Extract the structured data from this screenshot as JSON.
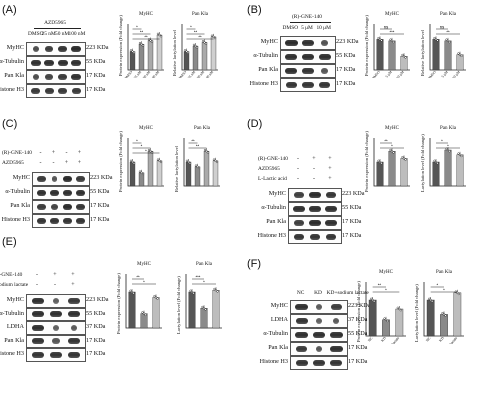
{
  "panels": {
    "A": {
      "label": "(A)",
      "compound": "AZD5965",
      "doses": [
        "DMSO",
        "25 nM",
        "50 nM",
        "100 nM"
      ],
      "rows": [
        {
          "name": "MyHC",
          "kda": "223 KDa"
        },
        {
          "name": "α-Tubulin",
          "kda": "55 KDa"
        },
        {
          "name": "Pan Kla",
          "kda": "17 KDa"
        },
        {
          "name": "Histone H3",
          "kda": "17 KDa"
        }
      ],
      "chart1": {
        "title": "MyHC",
        "ylabel": "Protein expression (Fold change)",
        "xticks": [
          "DMSO",
          "25 nM",
          "50 nM",
          "100 nM"
        ]
      },
      "chart2": {
        "title": "Pan Kla",
        "ylabel": "Relative lactylation level",
        "xticks": [
          "DMSO",
          "25 nM",
          "50 nM",
          "100 nM"
        ]
      }
    },
    "B": {
      "label": "(B)",
      "compound": "(R)-GNE-140",
      "doses": [
        "DMSO",
        "5 μM",
        "10 μM"
      ],
      "rows": [
        {
          "name": "MyHC",
          "kda": "223 KDa"
        },
        {
          "name": "α-Tubulin",
          "kda": "55 KDa"
        },
        {
          "name": "Pan Kla",
          "kda": "17 KDa"
        },
        {
          "name": "Histone H3",
          "kda": "17 KDa"
        }
      ],
      "chart1": {
        "title": "MyHC",
        "ylabel": "Protein expression (Fold change)",
        "xticks": [
          "DMSO",
          "5 μM",
          "10 μM"
        ]
      },
      "chart2": {
        "title": "Pan Kla",
        "ylabel": "Relative lactylation level",
        "xticks": [
          "DMSO",
          "5 μM",
          "10 μM"
        ]
      }
    },
    "C": {
      "label": "(C)",
      "conditions": [
        {
          "name": "(R)-GNE-140",
          "signs": [
            "-",
            "+",
            "-",
            "+"
          ]
        },
        {
          "name": "AZD5965",
          "signs": [
            "-",
            "-",
            "+",
            "+"
          ]
        }
      ],
      "rows": [
        {
          "name": "MyHC",
          "kda": "223 KDa"
        },
        {
          "name": "α-Tubulin",
          "kda": "55 KDa"
        },
        {
          "name": "Pan Kla",
          "kda": "17 KDa"
        },
        {
          "name": "Histone H3",
          "kda": "17 KDa"
        }
      ],
      "chart1": {
        "title": "MyHC",
        "ylabel": "Protein expression (Fold change)"
      },
      "chart2": {
        "title": "Pan Kla",
        "ylabel": "Relative lactylation level"
      }
    },
    "D": {
      "label": "(D)",
      "conditions": [
        {
          "name": "(R)-GNE-140",
          "signs": [
            "-",
            "+",
            "+"
          ]
        },
        {
          "name": "AZD5965",
          "signs": [
            "-",
            "-",
            "+"
          ]
        },
        {
          "name": "L-Lactic acid",
          "signs": [
            "-",
            "-",
            "+"
          ]
        }
      ],
      "rows": [
        {
          "name": "MyHC",
          "kda": "223 KDa"
        },
        {
          "name": "α-Tubulin",
          "kda": "55 KDa"
        },
        {
          "name": "Pan Kla",
          "kda": "17 KDa"
        },
        {
          "name": "Histone H3",
          "kda": "17 KDa"
        }
      ],
      "chart1": {
        "title": "MyHC",
        "ylabel": "Protein expression (Fold change)"
      },
      "chart2": {
        "title": "Pan Kla",
        "ylabel": "Lactylation level (Fold change)"
      }
    },
    "E": {
      "label": "(E)",
      "conditions": [
        {
          "name": "R-GNE-140",
          "signs": [
            "-",
            "+",
            "+"
          ]
        },
        {
          "name": "Sodium lactate",
          "signs": [
            "-",
            "-",
            "+"
          ]
        }
      ],
      "rows": [
        {
          "name": "MyHC",
          "kda": "223 KDa"
        },
        {
          "name": "α-Tubulin",
          "kda": "55 KDa"
        },
        {
          "name": "LDHA",
          "kda": "37 KDa"
        },
        {
          "name": "Pan Kla",
          "kda": "17 KDa"
        },
        {
          "name": "Histone H3",
          "kda": "17 KDa"
        }
      ],
      "chart1": {
        "title": "MyHC",
        "ylabel": "Protein expression (Fold change)"
      },
      "chart2": {
        "title": "Pan Kla",
        "ylabel": "Lactylation level (Fold change)"
      }
    },
    "F": {
      "label": "(F)",
      "lanes": [
        "NC",
        "KD",
        "KD+sodium lactate"
      ],
      "rows": [
        {
          "name": "MyHC",
          "kda": "223 KDa"
        },
        {
          "name": "LDHA",
          "kda": "37 KDa"
        },
        {
          "name": "α-Tubulin",
          "kda": "55 KDa"
        },
        {
          "name": "Pan Kla",
          "kda": "17 KDa"
        },
        {
          "name": "Histone H3",
          "kda": "17 KDa"
        }
      ],
      "chart1": {
        "title": "MyHC",
        "ylabel": "Protein expression (Fold change)",
        "xticks": [
          "NC",
          "KD",
          "KD+sodium lactate"
        ]
      },
      "chart2": {
        "title": "Pan Kla",
        "ylabel": "Lactylation level (Fold change)",
        "xticks": [
          "NC",
          "KD",
          "KD+sodium lactate"
        ]
      }
    }
  },
  "chart_data": [
    {
      "panel": "A",
      "title": "MyHC",
      "type": "bar",
      "ylabel": "Protein expression (Fold change)",
      "categories": [
        "DMSO",
        "25 nM",
        "50 nM",
        "100 nM"
      ],
      "values": [
        1.0,
        1.4,
        1.6,
        1.9
      ],
      "colors": [
        "#555555",
        "#8a8a8a",
        "#aaaaaa",
        "#cfcfcf"
      ],
      "signif": [
        "*",
        "**",
        "**"
      ],
      "ylim": [
        0,
        2.5
      ]
    },
    {
      "panel": "A",
      "title": "Pan Kla",
      "type": "bar",
      "ylabel": "Relative lactylation level",
      "categories": [
        "DMSO",
        "25 nM",
        "50 nM",
        "100 nM"
      ],
      "values": [
        1.0,
        1.3,
        1.5,
        1.8
      ],
      "colors": [
        "#555555",
        "#8a8a8a",
        "#aaaaaa",
        "#cfcfcf"
      ],
      "signif": [
        "*",
        "**",
        "**"
      ],
      "ylim": [
        0,
        2.5
      ]
    },
    {
      "panel": "B",
      "title": "MyHC",
      "type": "bar",
      "ylabel": "Protein expression (Fold change)",
      "categories": [
        "DMSO",
        "5 μM",
        "10 μM"
      ],
      "values": [
        1.0,
        0.95,
        0.45
      ],
      "colors": [
        "#555555",
        "#8a8a8a",
        "#bdbdbd"
      ],
      "signif": [
        "ns",
        "***"
      ],
      "ylim": [
        0,
        1.5
      ]
    },
    {
      "panel": "B",
      "title": "Pan Kla",
      "type": "bar",
      "ylabel": "Relative lactylation level",
      "categories": [
        "DMSO",
        "5 μM",
        "10 μM"
      ],
      "values": [
        1.0,
        0.95,
        0.5
      ],
      "colors": [
        "#555555",
        "#8a8a8a",
        "#bdbdbd"
      ],
      "signif": [
        "ns",
        "**"
      ],
      "ylim": [
        0,
        1.5
      ]
    },
    {
      "panel": "C",
      "title": "MyHC",
      "type": "bar",
      "ylabel": "Protein expression (Fold change)",
      "categories": [
        "1",
        "2",
        "3",
        "4"
      ],
      "values": [
        1.0,
        0.55,
        1.45,
        1.05
      ],
      "colors": [
        "#555555",
        "#8a8a8a",
        "#aaaaaa",
        "#cfcfcf"
      ],
      "signif": [
        "*",
        "*",
        "*"
      ],
      "ylim": [
        0,
        2.0
      ]
    },
    {
      "panel": "C",
      "title": "Pan Kla",
      "type": "bar",
      "ylabel": "Relative lactylation level",
      "categories": [
        "1",
        "2",
        "3",
        "4"
      ],
      "values": [
        1.0,
        0.8,
        1.45,
        1.05
      ],
      "colors": [
        "#555555",
        "#8a8a8a",
        "#aaaaaa",
        "#cfcfcf"
      ],
      "signif": [
        "**",
        "**"
      ],
      "ylim": [
        0,
        2.0
      ]
    },
    {
      "panel": "D",
      "title": "MyHC",
      "type": "bar",
      "ylabel": "Protein expression (Fold change)",
      "categories": [
        "1",
        "2",
        "3"
      ],
      "values": [
        1.0,
        1.45,
        1.15
      ],
      "colors": [
        "#555555",
        "#8a8a8a",
        "#bdbdbd"
      ],
      "signif": [
        "**",
        "*"
      ],
      "ylim": [
        0,
        2.0
      ]
    },
    {
      "panel": "D",
      "title": "Pan Kla",
      "type": "bar",
      "ylabel": "Lactylation level (Fold change)",
      "categories": [
        "1",
        "2",
        "3"
      ],
      "values": [
        1.0,
        1.5,
        1.3
      ],
      "colors": [
        "#555555",
        "#8a8a8a",
        "#bdbdbd"
      ],
      "signif": [
        "*",
        "*"
      ],
      "ylim": [
        0,
        2.0
      ]
    },
    {
      "panel": "E",
      "title": "MyHC",
      "type": "bar",
      "ylabel": "Protein expression (Fold change)",
      "categories": [
        "1",
        "2",
        "3"
      ],
      "values": [
        1.0,
        0.4,
        0.85
      ],
      "colors": [
        "#555555",
        "#8a8a8a",
        "#bdbdbd"
      ],
      "signif": [
        "**",
        "*"
      ],
      "ylim": [
        0,
        1.5
      ]
    },
    {
      "panel": "E",
      "title": "Pan Kla",
      "type": "bar",
      "ylabel": "Lactylation level (Fold change)",
      "categories": [
        "1",
        "2",
        "3"
      ],
      "values": [
        1.0,
        0.55,
        1.05
      ],
      "colors": [
        "#555555",
        "#8a8a8a",
        "#bdbdbd"
      ],
      "signif": [
        "***",
        "*"
      ],
      "ylim": [
        0,
        1.5
      ]
    },
    {
      "panel": "F",
      "title": "MyHC",
      "type": "bar",
      "ylabel": "Protein expression (Fold change)",
      "categories": [
        "NC",
        "KD",
        "KD+sodium lactate"
      ],
      "values": [
        1.0,
        0.45,
        0.75
      ],
      "colors": [
        "#555555",
        "#8a8a8a",
        "#bdbdbd"
      ],
      "signif": [
        "**",
        "*"
      ],
      "ylim": [
        0,
        1.5
      ]
    },
    {
      "panel": "F",
      "title": "Pan Kla",
      "type": "bar",
      "ylabel": "Lactylation level (Fold change)",
      "categories": [
        "NC",
        "KD",
        "KD+sodium lactate"
      ],
      "values": [
        1.0,
        0.6,
        1.2
      ],
      "colors": [
        "#555555",
        "#8a8a8a",
        "#bdbdbd"
      ],
      "signif": [
        "*",
        "*"
      ],
      "ylim": [
        0,
        1.5
      ]
    }
  ]
}
